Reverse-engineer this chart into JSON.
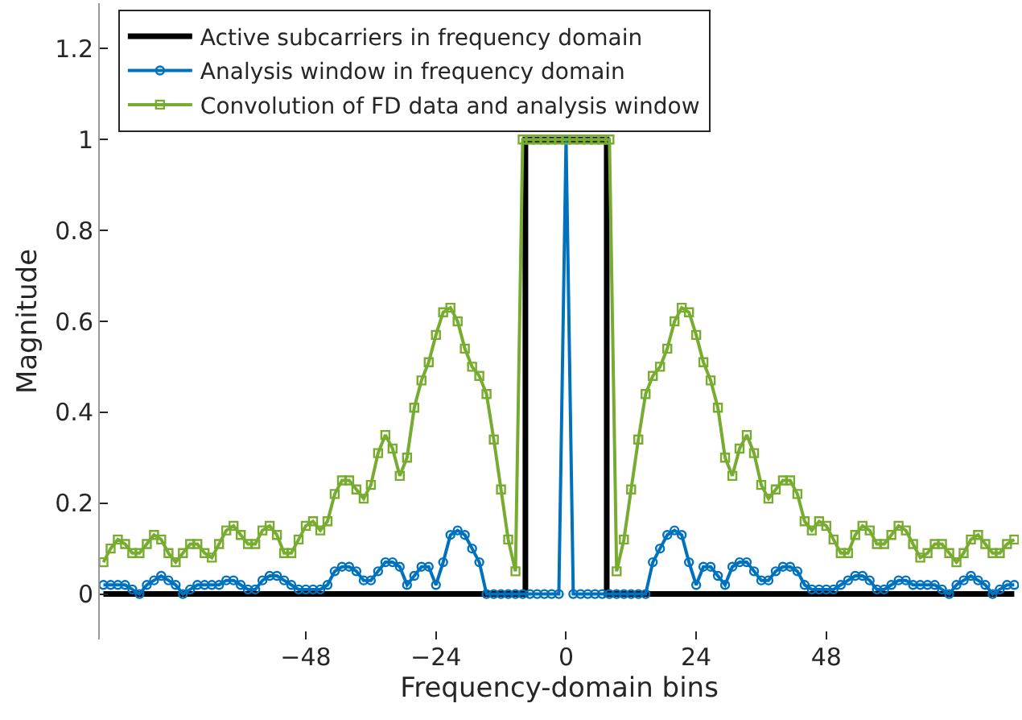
{
  "chart_data": {
    "type": "line",
    "xlabel": "Frequency-domain bins",
    "ylabel": "Magnitude",
    "xlim": [
      -86,
      83.5
    ],
    "ylim": [
      -0.1,
      1.3
    ],
    "xticks": [
      {
        "value": -48,
        "label": "−48"
      },
      {
        "value": -24,
        "label": "−24"
      },
      0,
      24,
      48
    ],
    "yticks": [
      0,
      0.2,
      0.4,
      0.6,
      0.8,
      1,
      1.2
    ],
    "grid": false,
    "legend": "top left",
    "x": [
      -85.33,
      -84,
      -82.67,
      -81.33,
      -80,
      -78.67,
      -77.33,
      -76,
      -74.67,
      -73.33,
      -72,
      -70.67,
      -69.33,
      -68,
      -66.67,
      -65.33,
      -64,
      -62.67,
      -61.33,
      -60,
      -58.67,
      -57.33,
      -56,
      -54.67,
      -53.33,
      -52,
      -50.67,
      -49.33,
      -48,
      -46.67,
      -45.33,
      -44,
      -42.67,
      -41.33,
      -40,
      -38.67,
      -37.33,
      -36,
      -34.67,
      -33.33,
      -32,
      -30.67,
      -29.33,
      -28,
      -26.67,
      -25.33,
      -24,
      -22.67,
      -21.33,
      -20,
      -18.67,
      -17.33,
      -16,
      -14.67,
      -13.33,
      -12,
      -10.67,
      -9.33,
      -8,
      -6.67,
      -5.33,
      -4,
      -2.67,
      -1.33,
      0,
      1.33,
      2.67,
      4,
      5.33,
      6.67,
      8,
      9.33,
      10.67,
      12,
      13.33,
      14.67,
      16,
      17.33,
      18.67,
      20,
      21.33,
      22.67,
      24,
      25.33,
      26.67,
      28,
      29.33,
      30.67,
      32,
      33.33,
      34.67,
      36,
      37.33,
      38.67,
      40,
      41.33,
      42.67,
      44,
      45.33,
      46.67,
      48,
      49.33,
      50.67,
      52,
      53.33,
      54.67,
      56,
      57.33,
      58.67,
      60,
      61.33,
      62.67,
      64,
      65.33,
      66.67,
      68,
      69.33,
      70.67,
      72,
      73.33,
      74.67,
      76,
      77.33,
      78.67,
      80,
      81.33,
      82.67
    ],
    "series": [
      {
        "name": "Active subcarriers in frequency domain",
        "color": "#000000",
        "marker": "none",
        "x": [
          -85.33,
          -7.5,
          -7.5,
          7.5,
          7.5,
          82.67
        ],
        "values": [
          0,
          0,
          1,
          1,
          0,
          0
        ]
      },
      {
        "name": "Analysis window in frequency domain",
        "color": "#0072bd",
        "marker": "circle",
        "values": [
          0.02,
          0.02,
          0.02,
          0.02,
          0.01,
          0,
          0.02,
          0.03,
          0.04,
          0.03,
          0.02,
          0,
          0.01,
          0.02,
          0.02,
          0.02,
          0.02,
          0.03,
          0.03,
          0.02,
          0.01,
          0.01,
          0.03,
          0.04,
          0.04,
          0.03,
          0.02,
          0.01,
          0.01,
          0.01,
          0.01,
          0.02,
          0.05,
          0.06,
          0.06,
          0.05,
          0.03,
          0.03,
          0.05,
          0.07,
          0.07,
          0.06,
          0.02,
          0.04,
          0.06,
          0.06,
          0.02,
          0.07,
          0.13,
          0.14,
          0.13,
          0.1,
          0.07,
          0,
          0,
          0,
          0,
          0,
          0,
          0,
          0,
          0,
          0,
          0,
          1,
          0,
          0,
          0,
          0,
          0,
          0,
          0,
          0,
          0,
          0,
          0,
          0.07,
          0.1,
          0.13,
          0.14,
          0.13,
          0.07,
          0.02,
          0.06,
          0.06,
          0.04,
          0.02,
          0.06,
          0.07,
          0.07,
          0.05,
          0.03,
          0.03,
          0.05,
          0.06,
          0.06,
          0.05,
          0.02,
          0.01,
          0.01,
          0.01,
          0.01,
          0.02,
          0.03,
          0.04,
          0.04,
          0.03,
          0.01,
          0.01,
          0.02,
          0.03,
          0.03,
          0.02,
          0.02,
          0.02,
          0.02,
          0.01,
          0,
          0.02,
          0.03,
          0.04,
          0.03,
          0.02,
          0,
          0.01,
          0.02,
          0.02
        ]
      },
      {
        "name": "Convolution of FD data and analysis window",
        "color": "#77ac30",
        "marker": "square",
        "values": [
          0.07,
          0.1,
          0.12,
          0.11,
          0.09,
          0.09,
          0.11,
          0.13,
          0.12,
          0.09,
          0.07,
          0.09,
          0.11,
          0.11,
          0.09,
          0.08,
          0.11,
          0.14,
          0.15,
          0.13,
          0.11,
          0.11,
          0.14,
          0.15,
          0.13,
          0.09,
          0.09,
          0.12,
          0.15,
          0.16,
          0.14,
          0.16,
          0.22,
          0.25,
          0.25,
          0.23,
          0.21,
          0.24,
          0.31,
          0.35,
          0.32,
          0.26,
          0.3,
          0.41,
          0.47,
          0.51,
          0.57,
          0.62,
          0.63,
          0.6,
          0.54,
          0.5,
          0.48,
          0.44,
          0.34,
          0.23,
          0.12,
          0.05,
          1,
          1,
          1,
          1,
          1,
          1,
          1,
          1,
          1,
          1,
          1,
          1,
          1,
          0.05,
          0.12,
          0.23,
          0.34,
          0.44,
          0.48,
          0.5,
          0.54,
          0.6,
          0.63,
          0.62,
          0.57,
          0.51,
          0.47,
          0.41,
          0.3,
          0.26,
          0.32,
          0.35,
          0.31,
          0.24,
          0.21,
          0.23,
          0.25,
          0.25,
          0.22,
          0.16,
          0.14,
          0.16,
          0.15,
          0.12,
          0.09,
          0.09,
          0.13,
          0.15,
          0.14,
          0.11,
          0.11,
          0.13,
          0.15,
          0.14,
          0.11,
          0.08,
          0.09,
          0.11,
          0.11,
          0.09,
          0.07,
          0.09,
          0.12,
          0.13,
          0.11,
          0.09,
          0.09,
          0.11,
          0.12
        ]
      }
    ]
  }
}
